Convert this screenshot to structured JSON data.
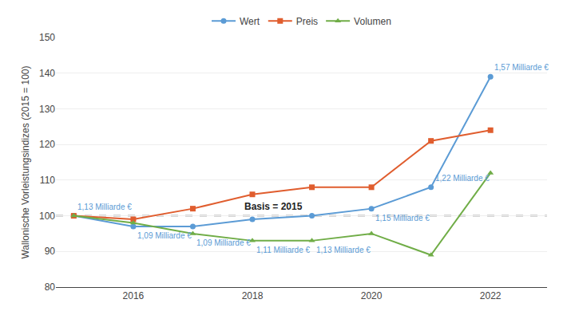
{
  "chart_data": {
    "type": "line",
    "x": [
      2015,
      2016,
      2017,
      2018,
      2019,
      2020,
      2021,
      2022
    ],
    "series": [
      {
        "name": "Wert",
        "color": "#5b9bd5",
        "marker": "circle",
        "values": [
          100,
          97,
          97,
          99,
          100,
          102,
          108,
          139
        ]
      },
      {
        "name": "Preis",
        "color": "#e05d2e",
        "marker": "square",
        "values": [
          100,
          99,
          102,
          106,
          108,
          108,
          121,
          124
        ]
      },
      {
        "name": "Volumen",
        "color": "#70ad47",
        "marker": "triangle",
        "values": [
          100,
          98,
          95,
          93,
          93,
          95,
          89,
          112
        ]
      }
    ],
    "ylabel": "Wallonische Vorleistungsindizes (2015 = 100)",
    "xlim": [
      2014.7,
      2022.95
    ],
    "xticks": [
      2016,
      2018,
      2020,
      2022
    ],
    "ylim": [
      80,
      150
    ],
    "yticks": [
      80,
      90,
      100,
      110,
      120,
      130,
      140,
      150
    ],
    "grid": true,
    "legend": "top",
    "annotations": [
      {
        "text": "1,13 Milliarde €",
        "series": "Wert",
        "x": 2015,
        "color": "#5b9bd5"
      },
      {
        "text": "1,09 Milliarde €",
        "series": "Wert",
        "x": 2016,
        "color": "#5b9bd5"
      },
      {
        "text": "1,15 Milliarde €",
        "series": "Wert",
        "x": 2020,
        "color": "#5b9bd5"
      },
      {
        "text": "1,22 Milliarde €",
        "series": "Wert",
        "x": 2021,
        "color": "#5b9bd5"
      },
      {
        "text": "1,57 Milliarde €",
        "series": "Wert",
        "x": 2022,
        "color": "#5b9bd5"
      },
      {
        "text": "1,09 Milliarde €",
        "series": "Volumen",
        "x": 2017,
        "color": "#5b9bd5"
      },
      {
        "text": "1,11 Milliarde €",
        "series": "Volumen",
        "x": 2018,
        "color": "#5b9bd5"
      },
      {
        "text": "1,13 Milliarde €",
        "series": "Volumen",
        "x": 2019,
        "color": "#5b9bd5"
      }
    ],
    "hline": {
      "y": 100,
      "label": "Basis = 2015",
      "color": "#555555",
      "line_style": "dashed"
    }
  }
}
